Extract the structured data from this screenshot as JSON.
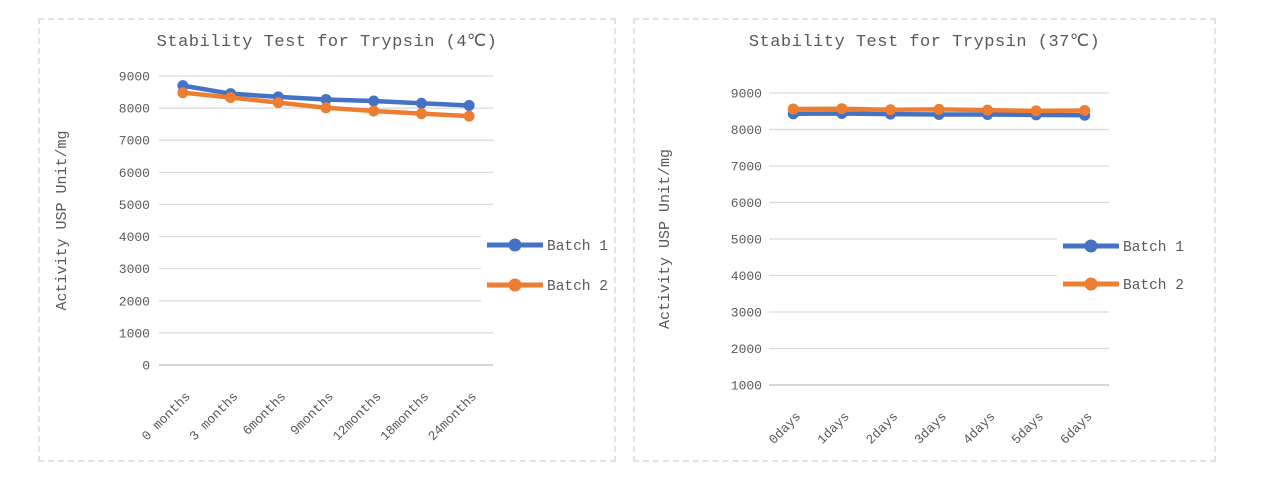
{
  "colors": {
    "series_blue": "#4472C4",
    "series_orange": "#ED7D31",
    "gridline": "#D9D9D9",
    "axis_line": "#BFBFBF",
    "text": "#595959",
    "panel_border": "#E2E2E2",
    "background": "#FFFFFF"
  },
  "chart_data": [
    {
      "type": "line",
      "title": "Stability Test for Trypsin (4℃)",
      "ylabel": "Activity USP Unit/mg",
      "xlabel": "",
      "categories": [
        "0 months",
        "3 months",
        "6months",
        "9months",
        "12months",
        "18months",
        "24months"
      ],
      "series": [
        {
          "name": "Batch 1",
          "color": "#4472C4",
          "values": [
            8700,
            8450,
            8350,
            8270,
            8220,
            8150,
            8080
          ]
        },
        {
          "name": "Batch 2",
          "color": "#ED7D31",
          "values": [
            8480,
            8330,
            8170,
            8010,
            7910,
            7830,
            7750
          ]
        }
      ],
      "ylim": [
        0,
        9000
      ],
      "ytick_step": 1000,
      "grid": true,
      "legend_position": "right",
      "legend": [
        "Batch 1",
        "Batch 2"
      ]
    },
    {
      "type": "line",
      "title": "Stability Test for Trypsin (37℃)",
      "ylabel": "Activity USP Unit/mg",
      "xlabel": "",
      "categories": [
        "0days",
        "1days",
        "2days",
        "3days",
        "4days",
        "5days",
        "6days"
      ],
      "series": [
        {
          "name": "Batch 1",
          "color": "#4472C4",
          "values": [
            8430,
            8440,
            8420,
            8410,
            8410,
            8400,
            8390
          ]
        },
        {
          "name": "Batch 2",
          "color": "#ED7D31",
          "values": [
            8560,
            8570,
            8540,
            8550,
            8530,
            8510,
            8520
          ]
        }
      ],
      "ylim": [
        1000,
        9000
      ],
      "ytick_step": 1000,
      "grid": true,
      "legend_position": "right",
      "legend": [
        "Batch 1",
        "Batch 2"
      ]
    }
  ]
}
